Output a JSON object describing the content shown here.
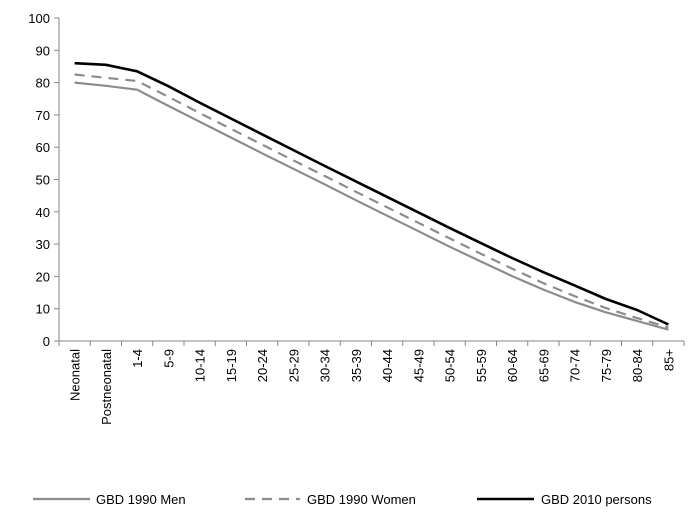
{
  "chart_data": {
    "type": "line",
    "title": "",
    "xlabel": "",
    "ylabel": "",
    "ylim": [
      0,
      100
    ],
    "yticks": [
      0,
      10,
      20,
      30,
      40,
      50,
      60,
      70,
      80,
      90,
      100
    ],
    "grid": false,
    "legend_position": "bottom",
    "categories": [
      "Neonatal",
      "Postneonatal",
      "1-4",
      "5-9",
      "10-14",
      "15-19",
      "20-24",
      "25-29",
      "30-34",
      "35-39",
      "40-44",
      "45-49",
      "50-54",
      "55-59",
      "60-64",
      "65-69",
      "70-74",
      "75-79",
      "80-84",
      "85+"
    ],
    "series": [
      {
        "name": "GBD 1990 Men",
        "color": "#8c8c8c",
        "dash": "solid",
        "values": [
          80.0,
          79.0,
          77.8,
          72.8,
          67.9,
          63.0,
          58.1,
          53.3,
          48.5,
          43.6,
          38.8,
          34.0,
          29.2,
          24.6,
          20.1,
          15.9,
          12.1,
          8.9,
          6.2,
          3.5
        ]
      },
      {
        "name": "GBD 1990 Women",
        "color": "#8c8c8c",
        "dash": "dashed",
        "values": [
          82.5,
          81.5,
          80.5,
          75.6,
          70.6,
          65.7,
          60.8,
          55.9,
          51.1,
          46.2,
          41.4,
          36.6,
          31.8,
          27.0,
          22.4,
          17.9,
          13.9,
          10.2,
          7.1,
          4.2
        ]
      },
      {
        "name": "GBD 2010 persons",
        "color": "#000000",
        "dash": "solid",
        "values": [
          86.0,
          85.5,
          83.5,
          78.9,
          73.8,
          68.9,
          64.0,
          59.1,
          54.2,
          49.4,
          44.6,
          39.8,
          35.0,
          30.3,
          25.7,
          21.3,
          17.2,
          13.0,
          9.6,
          5.1
        ]
      }
    ]
  }
}
